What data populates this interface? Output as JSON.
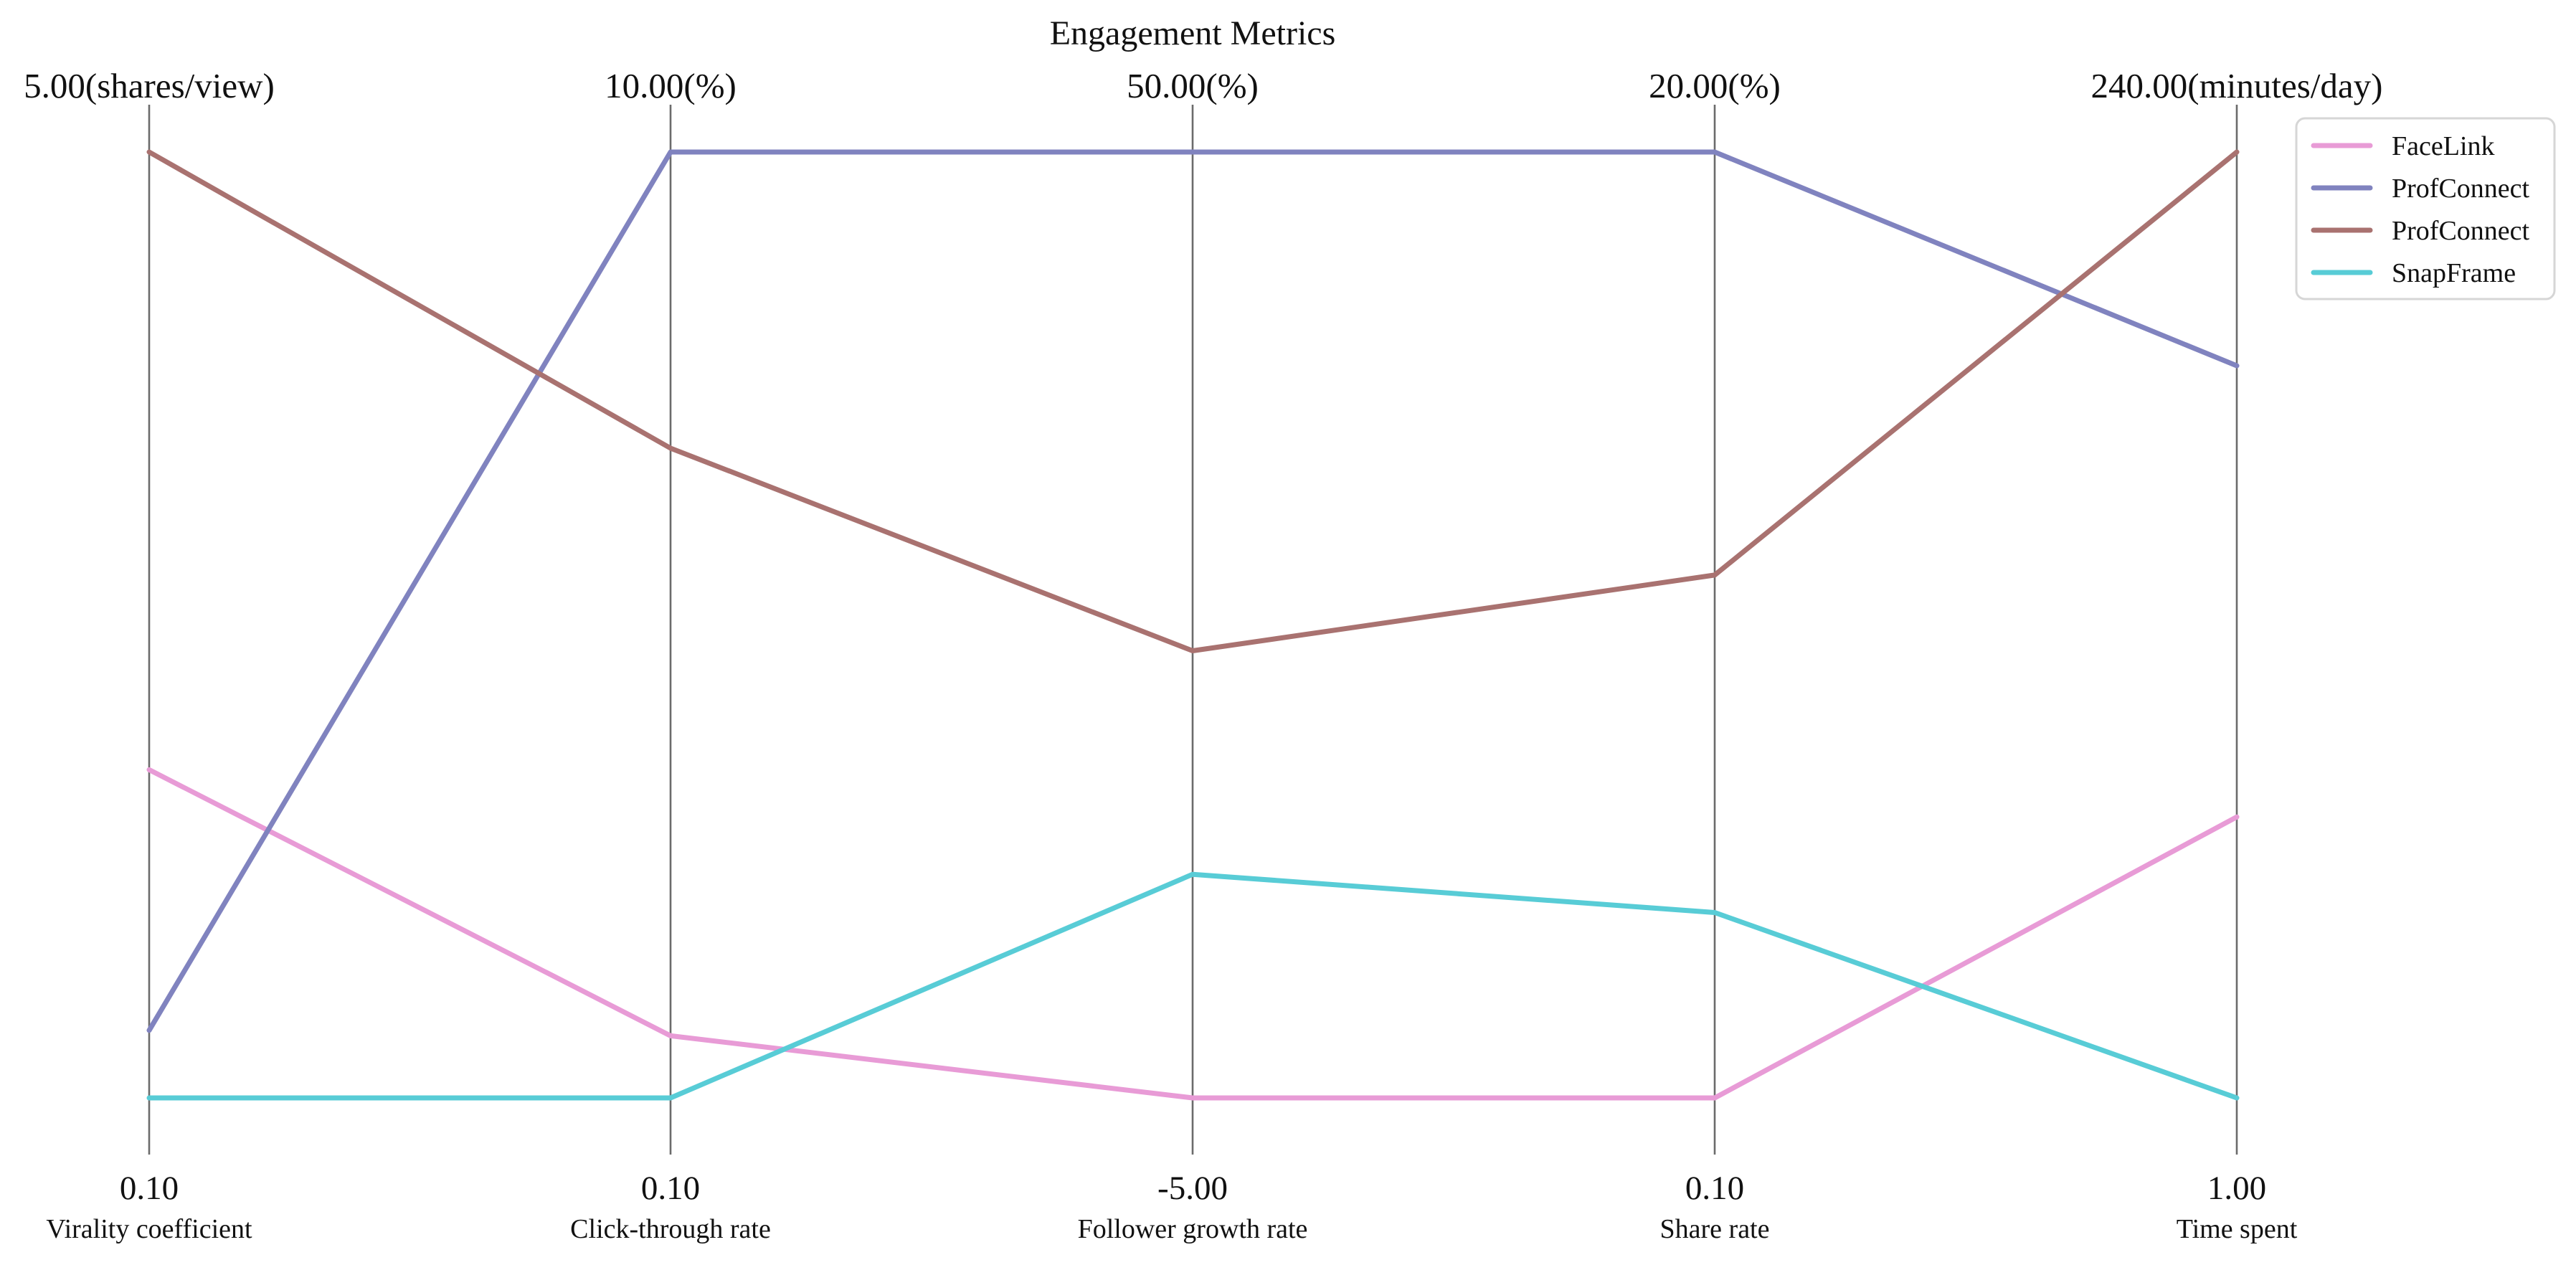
{
  "chart_data": {
    "type": "parallel_coordinates",
    "title": "Engagement Metrics",
    "legend_position": "top-right",
    "axes": [
      {
        "name": "Virality coefficient",
        "unit": "shares/view",
        "min": 0.1,
        "max": 5.0,
        "min_label": "0.10",
        "max_label": "5.00(shares/view)"
      },
      {
        "name": "Click-through rate",
        "unit": "%",
        "min": 0.1,
        "max": 10.0,
        "min_label": "0.10",
        "max_label": "10.00(%)"
      },
      {
        "name": "Follower growth rate",
        "unit": "%",
        "min": -5.0,
        "max": 50.0,
        "min_label": "-5.00",
        "max_label": "50.00(%)"
      },
      {
        "name": "Share rate",
        "unit": "%",
        "min": 0.1,
        "max": 20.0,
        "min_label": "0.10",
        "max_label": "20.00(%)"
      },
      {
        "name": "Time spent",
        "unit": "minutes/day",
        "min": 1.0,
        "max": 240.0,
        "min_label": "1.00",
        "max_label": "240.00(minutes/day)"
      }
    ],
    "series": [
      {
        "name": "FaceLink",
        "color": "#e89bd6",
        "values": [
          1.8,
          0.75,
          -5.0,
          0.1,
          72.0
        ]
      },
      {
        "name": "ProfConnect",
        "color": "#8083bf",
        "values": [
          0.45,
          10.0,
          50.0,
          20.0,
          186.0
        ]
      },
      {
        "name": "ProfConnect",
        "color": "#a97270",
        "values": [
          5.0,
          6.9,
          21.0,
          11.1,
          240.0
        ]
      },
      {
        "name": "SnapFrame",
        "color": "#58ccd6",
        "values": [
          0.1,
          0.1,
          8.0,
          4.0,
          1.0
        ]
      }
    ]
  }
}
